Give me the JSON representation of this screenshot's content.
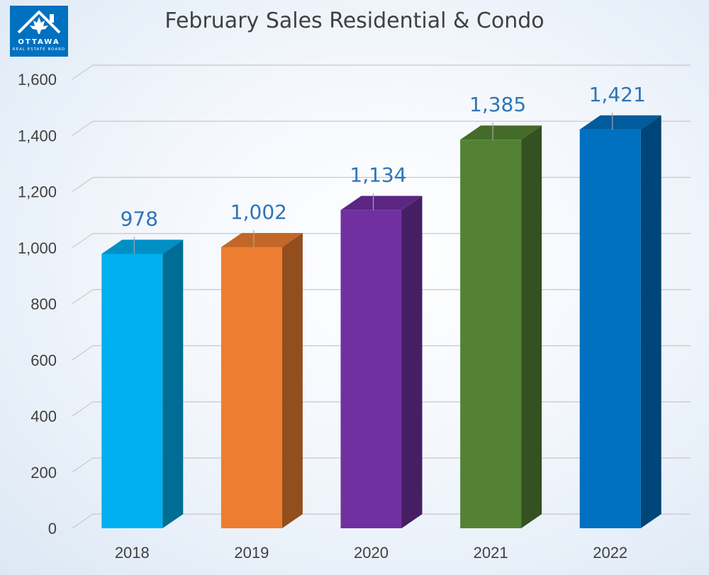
{
  "logo": {
    "name": "OTTAWA",
    "subtitle": "REAL ESTATE BOARD",
    "icon": "house-maple-leaf-icon",
    "color": "#0070c0"
  },
  "chart_data": {
    "type": "bar",
    "title": "February Sales Residential & Condo",
    "categories": [
      "2018",
      "2019",
      "2020",
      "2021",
      "2022"
    ],
    "values": [
      978,
      1002,
      1134,
      1385,
      1421
    ],
    "value_labels": [
      "978",
      "1,002",
      "1,134",
      "1,385",
      "1,421"
    ],
    "ylim": [
      0,
      1600
    ],
    "yticks": [
      0,
      200,
      400,
      600,
      800,
      1000,
      1200,
      1400,
      1600
    ],
    "ytick_labels": [
      "0",
      "200",
      "400",
      "600",
      "800",
      "1,000",
      "1,200",
      "1,400",
      "1,600"
    ],
    "xlabel": "",
    "ylabel": "",
    "grid": true,
    "style": "3d-column",
    "bar_colors": [
      "#00b0f0",
      "#ed7d31",
      "#7030a0",
      "#548235",
      "#0070c0"
    ],
    "label_color": "#2e75b6"
  }
}
